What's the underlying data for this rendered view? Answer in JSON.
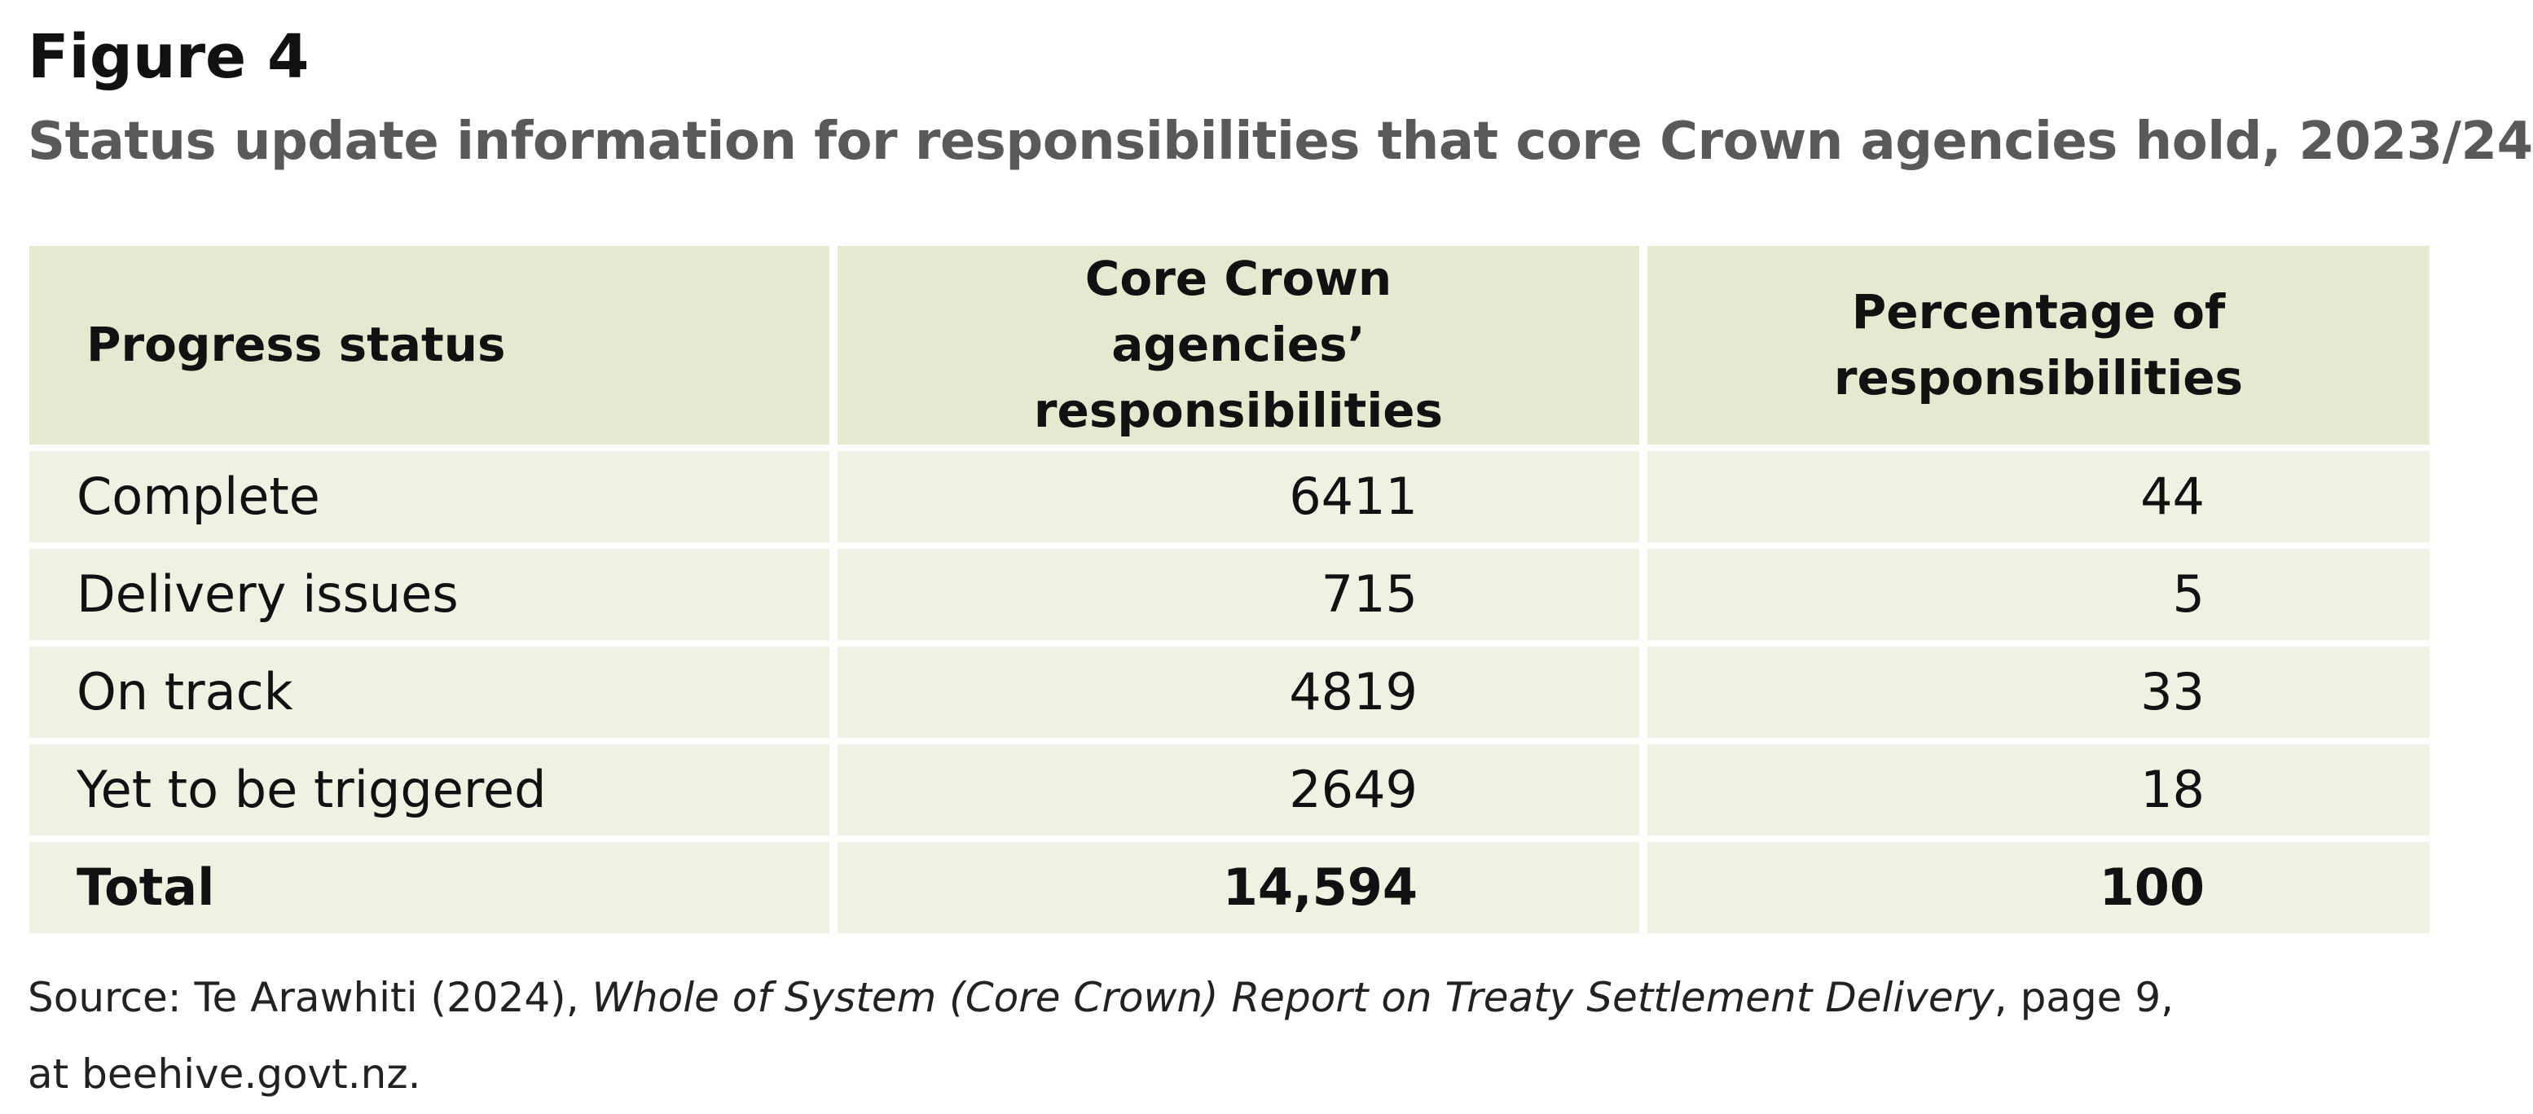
{
  "figure_label": "Figure 4",
  "title": "Status update information for responsibilities that core Crown agencies hold, 2023/24",
  "table": {
    "headers": [
      "Progress status",
      "Core Crown agencies’ responsibilities",
      "Percentage of responsibilities"
    ],
    "rows": [
      {
        "status": "Complete",
        "responsibilities": "6411",
        "percentage": "44"
      },
      {
        "status": "Delivery issues",
        "responsibilities": "715",
        "percentage": "5"
      },
      {
        "status": "On track",
        "responsibilities": "4819",
        "percentage": "33"
      },
      {
        "status": "Yet to be triggered",
        "responsibilities": "2649",
        "percentage": "18"
      }
    ],
    "total": {
      "status": "Total",
      "responsibilities": "14,594",
      "percentage": "100"
    }
  },
  "source": {
    "prefix": "Source: Te Arawhiti (2024), ",
    "report_title": "Whole of System (Core Crown) Report on Treaty Settlement Delivery",
    "suffix": ", page 9,",
    "line2": "at beehive.govt.nz."
  },
  "colors": {
    "header_fill": "#e6e9cf",
    "row_fill": "#f1f1e3",
    "title_grey": "#58595b"
  }
}
